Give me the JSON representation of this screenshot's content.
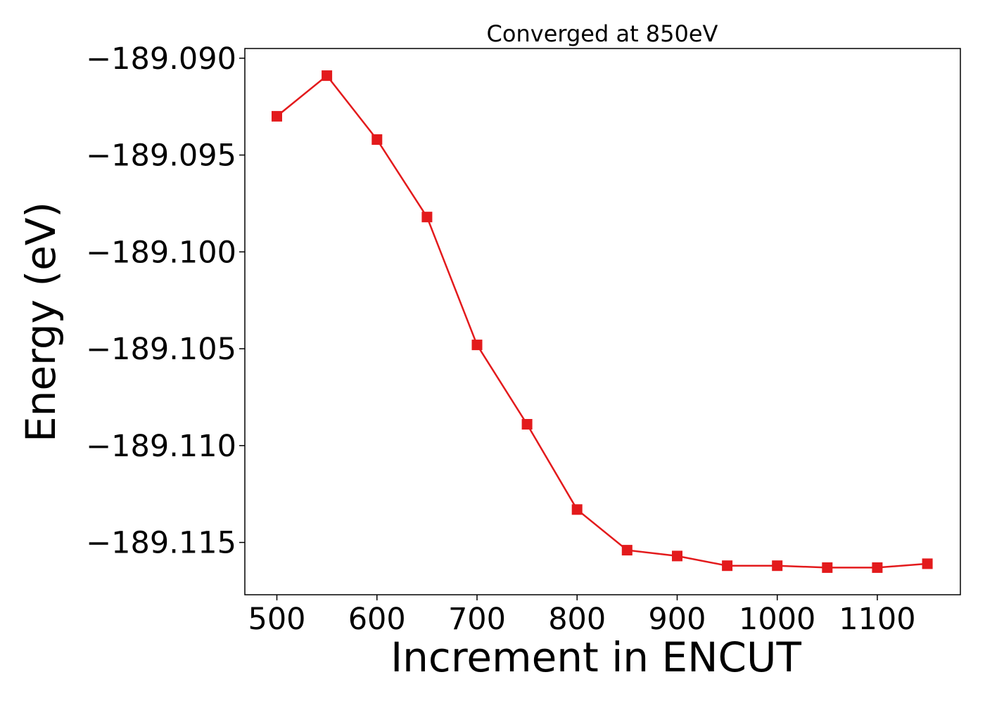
{
  "chart_data": {
    "type": "line",
    "title": "Converged at 850eV",
    "xlabel": "Increment in ENCUT",
    "ylabel": "Energy (eV)",
    "x": [
      500,
      550,
      600,
      650,
      700,
      750,
      800,
      850,
      900,
      950,
      1000,
      1050,
      1100,
      1150
    ],
    "series": [
      {
        "values": [
          -189.093,
          -189.0909,
          -189.0942,
          -189.0982,
          -189.1048,
          -189.1089,
          -189.1133,
          -189.1154,
          -189.1157,
          -189.1162,
          -189.1162,
          -189.1163,
          -189.1163,
          -189.1161
        ],
        "color": "#e31a1c",
        "marker": "square"
      }
    ],
    "xlim": [
      468,
      1183
    ],
    "ylim": [
      -189.1177,
      -189.0895
    ],
    "xticks": [
      500,
      600,
      700,
      800,
      900,
      1000,
      1100
    ],
    "xtick_labels": [
      "500",
      "600",
      "700",
      "800",
      "900",
      "1000",
      "1100"
    ],
    "yticks": [
      -189.09,
      -189.095,
      -189.1,
      -189.105,
      -189.11,
      -189.115
    ],
    "ytick_labels": [
      "−189.090",
      "−189.095",
      "−189.100",
      "−189.105",
      "−189.110",
      "−189.115"
    ],
    "grid": false
  }
}
